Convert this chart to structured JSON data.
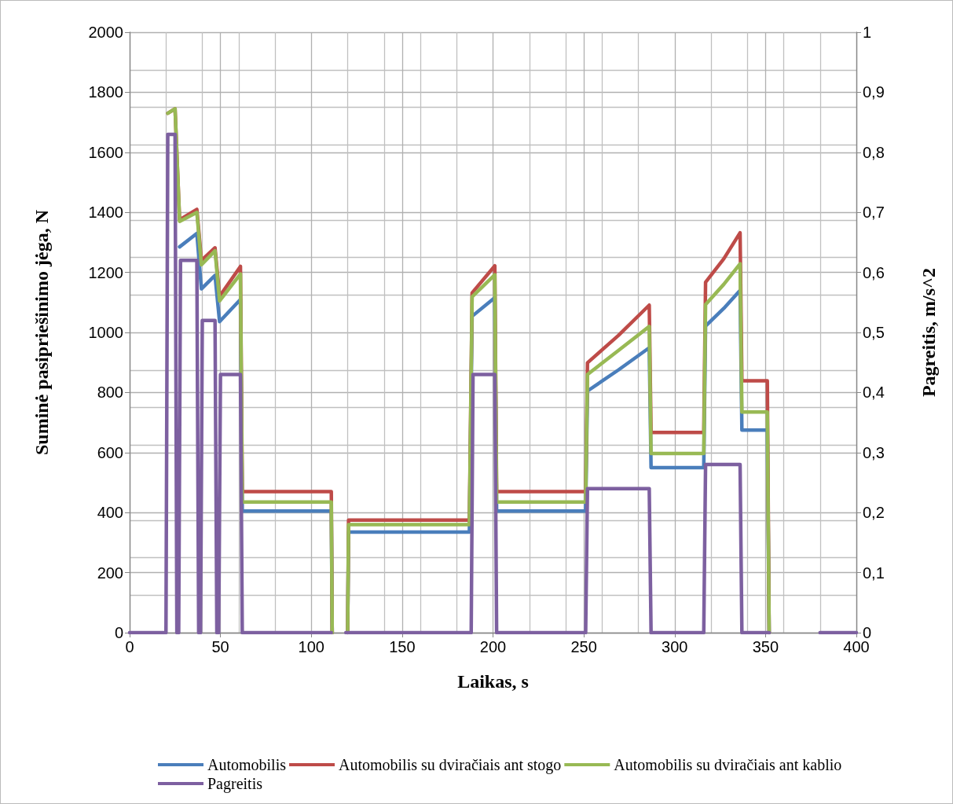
{
  "chart_data": {
    "type": "line",
    "xlabel": "Laikas, s",
    "ylabel": "Suminė pasipriešinimo jėga, N",
    "y2label": "Pagreitis, m/s^2",
    "xlim": [
      0,
      400
    ],
    "xticks": [
      0,
      50,
      100,
      150,
      200,
      250,
      300,
      350,
      400
    ],
    "ylim": [
      0,
      2000
    ],
    "yticks": [
      0,
      200,
      400,
      600,
      800,
      1000,
      1200,
      1400,
      1600,
      1800,
      2000
    ],
    "y2lim": [
      0,
      1
    ],
    "y2ticks": [
      0,
      {
        "value": 0.1,
        "label": "0,1"
      },
      {
        "value": 0.2,
        "label": "0,2"
      },
      {
        "value": 0.3,
        "label": "0,3"
      },
      {
        "value": 0.4,
        "label": "0,4"
      },
      {
        "value": 0.5,
        "label": "0,5"
      },
      {
        "value": 0.6,
        "label": "0,6"
      },
      {
        "value": 0.7,
        "label": "0,7"
      },
      {
        "value": 0.8,
        "label": "0,8"
      },
      {
        "value": 0.9,
        "label": "0,9"
      },
      1
    ],
    "grid": true,
    "legend": "bottom",
    "marker": "none",
    "line_style": "solid",
    "series": [
      {
        "name": "Automobilis",
        "color": "#4a7ebb",
        "x": [
          27.5,
          37,
          39.5,
          47,
          49.5,
          61,
          62,
          111,
          111.5,
          115,
          120,
          120.5,
          187,
          188.5,
          201,
          202,
          251,
          252,
          269,
          286,
          287,
          316,
          317,
          327,
          336,
          337,
          351,
          352
        ],
        "values": [
          1285,
          1330,
          1145,
          1190,
          1036,
          1110,
          405,
          405,
          0,
          null,
          0,
          335,
          335,
          1054,
          1116,
          405,
          405,
          805,
          875,
          949,
          550,
          550,
          1021,
          1080,
          1140,
          675,
          675,
          0
        ]
      },
      {
        "name": "Automobilis su dviračiais ant stogo",
        "color": "#be4b48",
        "x": [
          21,
          25,
          27.5,
          37,
          39.5,
          47,
          49.5,
          61,
          62,
          111,
          111.5,
          115,
          120,
          120.5,
          187,
          188.5,
          201,
          202,
          251,
          252,
          269,
          286,
          287,
          316,
          317,
          327,
          336,
          337,
          351,
          352
        ],
        "values": [
          1730,
          1745,
          1375,
          1410,
          1240,
          1282,
          1120,
          1220,
          470,
          470,
          0,
          null,
          0,
          375,
          375,
          1132,
          1222,
          470,
          470,
          899,
          990,
          1091,
          667,
          667,
          1167,
          1245,
          1332,
          839,
          839,
          0
        ]
      },
      {
        "name": "Automobilis su dviračiais ant kablio",
        "color": "#98b954",
        "x": [
          21,
          25,
          27.5,
          37,
          39.5,
          47,
          49.5,
          61,
          62,
          111,
          111.5,
          115,
          120,
          120.5,
          187,
          188.5,
          201,
          202,
          251,
          252,
          269,
          286,
          287,
          316,
          317,
          327,
          336,
          337,
          351,
          352
        ],
        "values": [
          1730,
          1745,
          1370,
          1400,
          1225,
          1272,
          1105,
          1195,
          435,
          435,
          0,
          null,
          0,
          360,
          360,
          1119,
          1192,
          435,
          435,
          860,
          940,
          1020,
          597,
          597,
          1093,
          1160,
          1229,
          735,
          735,
          0
        ]
      },
      {
        "name": "Pagreitis",
        "color": "#7d60a0",
        "axis": "y2",
        "x": [
          0,
          20,
          21,
          25,
          26,
          27,
          28,
          37,
          38,
          39,
          40,
          47,
          48,
          49,
          50,
          61,
          62,
          111,
          115,
          119,
          188,
          189,
          201,
          202,
          251,
          252,
          286,
          287,
          316,
          317,
          336,
          337,
          352,
          366,
          380,
          400
        ],
        "values": [
          0,
          0,
          0.83,
          0.83,
          0,
          0,
          0.62,
          0.62,
          0,
          0,
          0.52,
          0.52,
          0,
          0,
          0.43,
          0.43,
          0,
          0,
          null,
          0,
          0,
          0.43,
          0.43,
          0,
          0,
          0.24,
          0.24,
          0,
          0,
          0.28,
          0.28,
          0,
          0,
          null,
          0,
          0
        ]
      }
    ]
  }
}
